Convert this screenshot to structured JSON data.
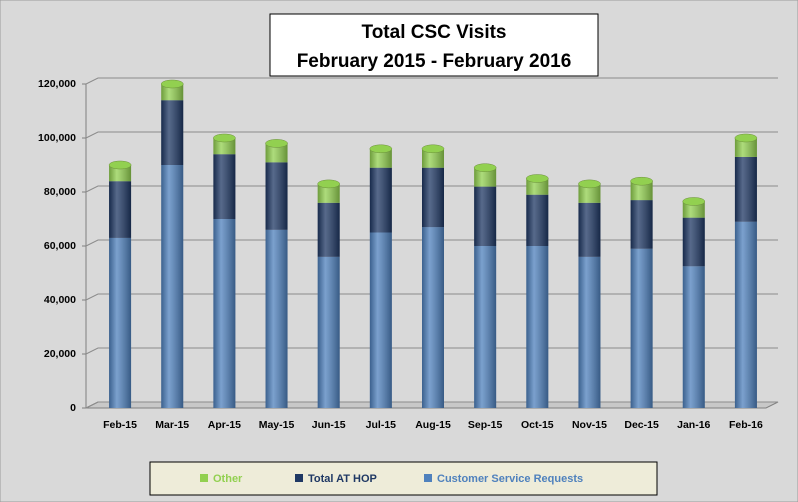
{
  "chart_data": {
    "type": "stacked-bar",
    "title": "Total CSC Visits",
    "subtitle": "February 2015 - February 2016",
    "categories": [
      "Feb-15",
      "Mar-15",
      "Apr-15",
      "May-15",
      "Jun-15",
      "Jul-15",
      "Aug-15",
      "Sep-15",
      "Oct-15",
      "Nov-15",
      "Dec-15",
      "Jan-16",
      "Feb-16"
    ],
    "series": [
      {
        "name": "Customer Service Requests",
        "color": "#4f81bd",
        "values": [
          63000,
          90000,
          70000,
          66000,
          56000,
          65000,
          67000,
          60000,
          60000,
          56000,
          59000,
          52500,
          69000
        ]
      },
      {
        "name": "Total AT HOP",
        "color": "#1f3864",
        "values": [
          21000,
          24000,
          24000,
          25000,
          20000,
          24000,
          22000,
          22000,
          19000,
          20000,
          18000,
          18000,
          24000
        ]
      },
      {
        "name": "Other",
        "color": "#92d050",
        "values": [
          6000,
          6000,
          6000,
          7000,
          7000,
          7000,
          7000,
          7000,
          6000,
          7000,
          7000,
          6000,
          7000
        ]
      }
    ],
    "ylim": [
      0,
      120000
    ],
    "yticks": [
      0,
      {
        "value": 20000,
        "label": "20,000"
      },
      {
        "value": 40000,
        "label": "40,000"
      },
      {
        "value": 60000,
        "label": "60,000"
      },
      {
        "value": 80000,
        "label": "80,000"
      },
      {
        "value": 100000,
        "label": "100,000"
      },
      {
        "value": 120000,
        "label": "120,000"
      }
    ],
    "grid": true
  }
}
